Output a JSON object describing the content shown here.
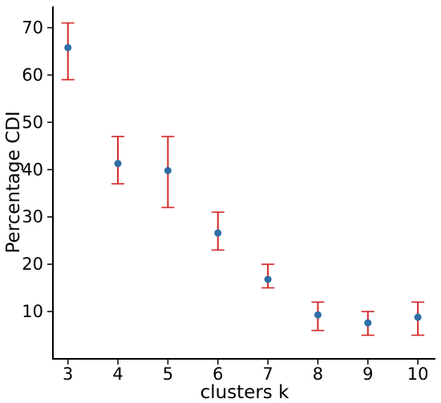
{
  "chart_data": {
    "type": "scatter",
    "title": "",
    "xlabel": "clusters k",
    "ylabel": "Percentage CDI",
    "x": [
      3,
      4,
      5,
      6,
      7,
      8,
      9,
      10
    ],
    "y": [
      65.8,
      41.3,
      39.8,
      26.6,
      16.8,
      9.3,
      7.6,
      8.8
    ],
    "error_low": [
      59,
      37,
      32,
      23,
      15,
      6,
      5,
      5
    ],
    "error_high": [
      71,
      47,
      47,
      31,
      20,
      12,
      10,
      12
    ],
    "xlim": [
      2.7,
      10.35
    ],
    "ylim": [
      0,
      74.5
    ],
    "xticks": [
      "3",
      "4",
      "5",
      "6",
      "7",
      "8",
      "9",
      "10"
    ],
    "yticks": [
      "10",
      "20",
      "30",
      "40",
      "50",
      "60",
      "70"
    ],
    "ytick_values": [
      10,
      20,
      30,
      40,
      50,
      60,
      70
    ],
    "grid": false,
    "colors": {
      "marker": "#2f6ea6",
      "errorbar": "#d62728",
      "axis": "#000000"
    }
  }
}
